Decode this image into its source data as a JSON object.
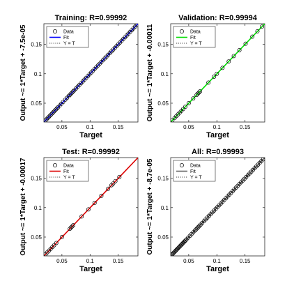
{
  "colors": {
    "training_fit": "#0000ff",
    "validation_fit": "#00dd00",
    "test_fit": "#dd0000",
    "all_fit": "#666666",
    "marker_edge": "#000000",
    "identity_line": "#000000"
  },
  "chart_data": [
    {
      "type": "scatter",
      "title": "Training: R=0.99992",
      "xlabel": "Target",
      "ylabel": "Output ~= 1*Target + -7.5e-05",
      "xlim": [
        0.018,
        0.185
      ],
      "ylim": [
        0.018,
        0.185
      ],
      "xticks": [
        0.05,
        0.1,
        0.15
      ],
      "yticks": [
        0.05,
        0.1,
        0.15
      ],
      "xtick_labels": [
        "0.05",
        "0.1",
        "0.15"
      ],
      "ytick_labels": [
        "0.05",
        "0.1",
        "0.15"
      ],
      "grid": false,
      "legend_position": "top-left",
      "legend": [
        "Data",
        "Fit",
        "Y = T"
      ],
      "fit": {
        "slope": 1,
        "intercept": -7.5e-05
      },
      "series": [
        {
          "name": "Data",
          "kind": "points",
          "x": [
            0.021,
            0.023,
            0.025,
            0.027,
            0.029,
            0.031,
            0.033,
            0.035,
            0.037,
            0.039,
            0.041,
            0.043,
            0.046,
            0.049,
            0.052,
            0.056,
            0.059,
            0.062,
            0.064,
            0.066,
            0.068,
            0.07,
            0.072,
            0.075,
            0.078,
            0.081,
            0.084,
            0.087,
            0.09,
            0.093,
            0.096,
            0.099,
            0.102,
            0.105,
            0.108,
            0.111,
            0.114,
            0.117,
            0.12,
            0.123,
            0.126,
            0.129,
            0.132,
            0.135,
            0.138,
            0.141,
            0.144,
            0.147,
            0.15,
            0.153,
            0.156,
            0.159,
            0.162,
            0.165,
            0.168,
            0.171,
            0.174,
            0.177,
            0.18,
            0.183
          ],
          "y": [
            0.021,
            0.023,
            0.025,
            0.027,
            0.029,
            0.031,
            0.033,
            0.035,
            0.037,
            0.039,
            0.041,
            0.043,
            0.046,
            0.049,
            0.052,
            0.056,
            0.059,
            0.062,
            0.064,
            0.066,
            0.068,
            0.07,
            0.072,
            0.075,
            0.078,
            0.081,
            0.084,
            0.087,
            0.09,
            0.093,
            0.096,
            0.099,
            0.102,
            0.105,
            0.108,
            0.111,
            0.114,
            0.117,
            0.12,
            0.123,
            0.126,
            0.129,
            0.132,
            0.135,
            0.138,
            0.141,
            0.144,
            0.147,
            0.15,
            0.153,
            0.156,
            0.159,
            0.162,
            0.165,
            0.168,
            0.171,
            0.174,
            0.177,
            0.18,
            0.183
          ]
        },
        {
          "name": "Fit",
          "kind": "fit-line"
        },
        {
          "name": "Y = T",
          "kind": "identity-line"
        }
      ]
    },
    {
      "type": "scatter",
      "title": "Validation: R=0.99994",
      "xlabel": "Target",
      "ylabel": "Output ~= 1*Target + -0.00011",
      "xlim": [
        0.018,
        0.185
      ],
      "ylim": [
        0.018,
        0.185
      ],
      "xticks": [
        0.05,
        0.1,
        0.15
      ],
      "yticks": [
        0.05,
        0.1,
        0.15
      ],
      "xtick_labels": [
        "0.05",
        "0.1",
        "0.15"
      ],
      "ytick_labels": [
        "0.05",
        "0.1",
        "0.15"
      ],
      "grid": false,
      "legend_position": "top-left",
      "legend": [
        "Data",
        "Fit",
        "Y = T"
      ],
      "fit": {
        "slope": 1,
        "intercept": -0.00011
      },
      "series": [
        {
          "name": "Data",
          "kind": "points",
          "x": [
            0.021,
            0.025,
            0.028,
            0.031,
            0.034,
            0.037,
            0.04,
            0.044,
            0.05,
            0.058,
            0.064,
            0.066,
            0.068,
            0.07,
            0.085,
            0.095,
            0.1,
            0.11,
            0.121,
            0.13,
            0.14,
            0.151,
            0.163,
            0.172,
            0.18
          ],
          "y": [
            0.021,
            0.025,
            0.028,
            0.031,
            0.034,
            0.037,
            0.04,
            0.044,
            0.05,
            0.058,
            0.064,
            0.066,
            0.068,
            0.07,
            0.085,
            0.095,
            0.1,
            0.11,
            0.121,
            0.13,
            0.14,
            0.151,
            0.163,
            0.172,
            0.18
          ]
        },
        {
          "name": "Fit",
          "kind": "fit-line"
        },
        {
          "name": "Y = T",
          "kind": "identity-line"
        }
      ]
    },
    {
      "type": "scatter",
      "title": "Test: R=0.99992",
      "xlabel": "Target",
      "ylabel": "Output ~= 1*Target + -0.00017",
      "xlim": [
        0.018,
        0.185
      ],
      "ylim": [
        0.018,
        0.185
      ],
      "xticks": [
        0.05,
        0.1,
        0.15
      ],
      "yticks": [
        0.05,
        0.1,
        0.15
      ],
      "xtick_labels": [
        "0.05",
        "0.1",
        "0.15"
      ],
      "ytick_labels": [
        "0.05",
        "0.1",
        "0.15"
      ],
      "grid": false,
      "legend_position": "top-left",
      "legend": [
        "Data",
        "Fit",
        "Y = T"
      ],
      "fit": {
        "slope": 1,
        "intercept": -0.00017
      },
      "series": [
        {
          "name": "Data",
          "kind": "points",
          "x": [
            0.021,
            0.024,
            0.027,
            0.03,
            0.033,
            0.036,
            0.04,
            0.05,
            0.064,
            0.066,
            0.068,
            0.07,
            0.085,
            0.097,
            0.108,
            0.12,
            0.132,
            0.138,
            0.141,
            0.145,
            0.152
          ],
          "y": [
            0.021,
            0.024,
            0.027,
            0.03,
            0.033,
            0.036,
            0.04,
            0.05,
            0.064,
            0.066,
            0.068,
            0.07,
            0.085,
            0.097,
            0.108,
            0.12,
            0.132,
            0.138,
            0.141,
            0.145,
            0.152
          ]
        },
        {
          "name": "Fit",
          "kind": "fit-line"
        },
        {
          "name": "Y = T",
          "kind": "identity-line"
        }
      ]
    },
    {
      "type": "scatter",
      "title": "All: R=0.99993",
      "xlabel": "Target",
      "ylabel": "Output ~= 1*Target + -8.7e-05",
      "xlim": [
        0.018,
        0.185
      ],
      "ylim": [
        0.018,
        0.185
      ],
      "xticks": [
        0.05,
        0.1,
        0.15
      ],
      "yticks": [
        0.05,
        0.1,
        0.15
      ],
      "xtick_labels": [
        "0.05",
        "0.1",
        "0.15"
      ],
      "ytick_labels": [
        "0.05",
        "0.1",
        "0.15"
      ],
      "grid": false,
      "legend_position": "top-left",
      "legend": [
        "Data",
        "Fit",
        "Y = T"
      ],
      "fit": {
        "slope": 1,
        "intercept": -8.7e-05
      },
      "series": [
        {
          "name": "Data",
          "kind": "points",
          "x": [
            0.02,
            0.0215,
            0.023,
            0.0245,
            0.026,
            0.0275,
            0.029,
            0.0305,
            0.032,
            0.0335,
            0.035,
            0.0365,
            0.038,
            0.0395,
            0.041,
            0.0425,
            0.044,
            0.046,
            0.049,
            0.052,
            0.055,
            0.058,
            0.061,
            0.063,
            0.065,
            0.067,
            0.069,
            0.071,
            0.074,
            0.077,
            0.08,
            0.083,
            0.086,
            0.089,
            0.092,
            0.095,
            0.098,
            0.101,
            0.104,
            0.107,
            0.11,
            0.113,
            0.116,
            0.119,
            0.122,
            0.125,
            0.128,
            0.131,
            0.134,
            0.137,
            0.14,
            0.143,
            0.146,
            0.149,
            0.152,
            0.155,
            0.158,
            0.161,
            0.164,
            0.167,
            0.17,
            0.173,
            0.176,
            0.179,
            0.182
          ],
          "y": [
            0.02,
            0.0215,
            0.023,
            0.0245,
            0.026,
            0.0275,
            0.029,
            0.0305,
            0.032,
            0.0335,
            0.035,
            0.0365,
            0.038,
            0.0395,
            0.041,
            0.0425,
            0.044,
            0.046,
            0.049,
            0.052,
            0.055,
            0.058,
            0.061,
            0.063,
            0.065,
            0.067,
            0.069,
            0.071,
            0.074,
            0.077,
            0.08,
            0.083,
            0.086,
            0.089,
            0.092,
            0.095,
            0.098,
            0.101,
            0.104,
            0.107,
            0.11,
            0.113,
            0.116,
            0.119,
            0.122,
            0.125,
            0.128,
            0.131,
            0.134,
            0.137,
            0.14,
            0.143,
            0.146,
            0.149,
            0.152,
            0.155,
            0.158,
            0.161,
            0.164,
            0.167,
            0.17,
            0.173,
            0.176,
            0.179,
            0.182
          ]
        },
        {
          "name": "Fit",
          "kind": "fit-line"
        },
        {
          "name": "Y = T",
          "kind": "identity-line"
        }
      ]
    }
  ]
}
